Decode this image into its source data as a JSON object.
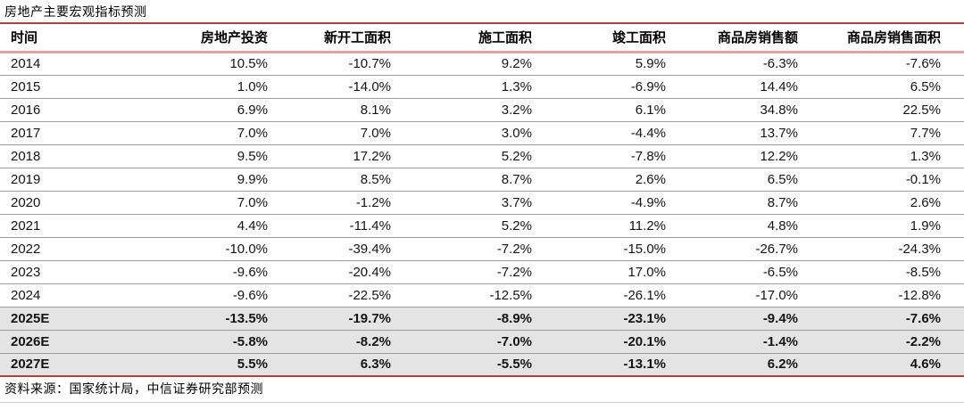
{
  "page": {
    "title": "房地产主要宏观指标预测",
    "source_note": "资料来源：国家统计局，中信证券研究部预测"
  },
  "colors": {
    "rule_red": "#bf3b3b",
    "rule_pink": "#e2a2a2",
    "row_divider": "#9b9b9b",
    "forecast_row_bg": "#e4e4e4",
    "bottom_rule_gray": "#cccccc",
    "text": "#141414"
  },
  "chart_data": {
    "type": "table",
    "title": "房地产主要宏观指标预测",
    "columns": [
      "时间",
      "房地产投资",
      "新开工面积",
      "施工面积",
      "竣工面积",
      "商品房销售额",
      "商品房销售面积"
    ],
    "rows": [
      {
        "time": "2014",
        "is_forecast": false,
        "values": [
          "10.5%",
          "-10.7%",
          "9.2%",
          "5.9%",
          "-6.3%",
          "-7.6%"
        ]
      },
      {
        "time": "2015",
        "is_forecast": false,
        "values": [
          "1.0%",
          "-14.0%",
          "1.3%",
          "-6.9%",
          "14.4%",
          "6.5%"
        ]
      },
      {
        "time": "2016",
        "is_forecast": false,
        "values": [
          "6.9%",
          "8.1%",
          "3.2%",
          "6.1%",
          "34.8%",
          "22.5%"
        ]
      },
      {
        "time": "2017",
        "is_forecast": false,
        "values": [
          "7.0%",
          "7.0%",
          "3.0%",
          "-4.4%",
          "13.7%",
          "7.7%"
        ]
      },
      {
        "time": "2018",
        "is_forecast": false,
        "values": [
          "9.5%",
          "17.2%",
          "5.2%",
          "-7.8%",
          "12.2%",
          "1.3%"
        ]
      },
      {
        "time": "2019",
        "is_forecast": false,
        "values": [
          "9.9%",
          "8.5%",
          "8.7%",
          "2.6%",
          "6.5%",
          "-0.1%"
        ]
      },
      {
        "time": "2020",
        "is_forecast": false,
        "values": [
          "7.0%",
          "-1.2%",
          "3.7%",
          "-4.9%",
          "8.7%",
          "2.6%"
        ]
      },
      {
        "time": "2021",
        "is_forecast": false,
        "values": [
          "4.4%",
          "-11.4%",
          "5.2%",
          "11.2%",
          "4.8%",
          "1.9%"
        ]
      },
      {
        "time": "2022",
        "is_forecast": false,
        "values": [
          "-10.0%",
          "-39.4%",
          "-7.2%",
          "-15.0%",
          "-26.7%",
          "-24.3%"
        ]
      },
      {
        "time": "2023",
        "is_forecast": false,
        "values": [
          "-9.6%",
          "-20.4%",
          "-7.2%",
          "17.0%",
          "-6.5%",
          "-8.5%"
        ]
      },
      {
        "time": "2024",
        "is_forecast": false,
        "values": [
          "-9.6%",
          "-22.5%",
          "-12.5%",
          "-26.1%",
          "-17.0%",
          "-12.8%"
        ]
      },
      {
        "time": "2025E",
        "is_forecast": true,
        "values": [
          "-13.5%",
          "-19.7%",
          "-8.9%",
          "-23.1%",
          "-9.4%",
          "-7.6%"
        ]
      },
      {
        "time": "2026E",
        "is_forecast": true,
        "values": [
          "-5.8%",
          "-8.2%",
          "-7.0%",
          "-20.1%",
          "-1.4%",
          "-2.2%"
        ]
      },
      {
        "time": "2027E",
        "is_forecast": true,
        "values": [
          "5.5%",
          "6.3%",
          "-5.5%",
          "-13.1%",
          "6.2%",
          "4.6%"
        ]
      }
    ]
  }
}
